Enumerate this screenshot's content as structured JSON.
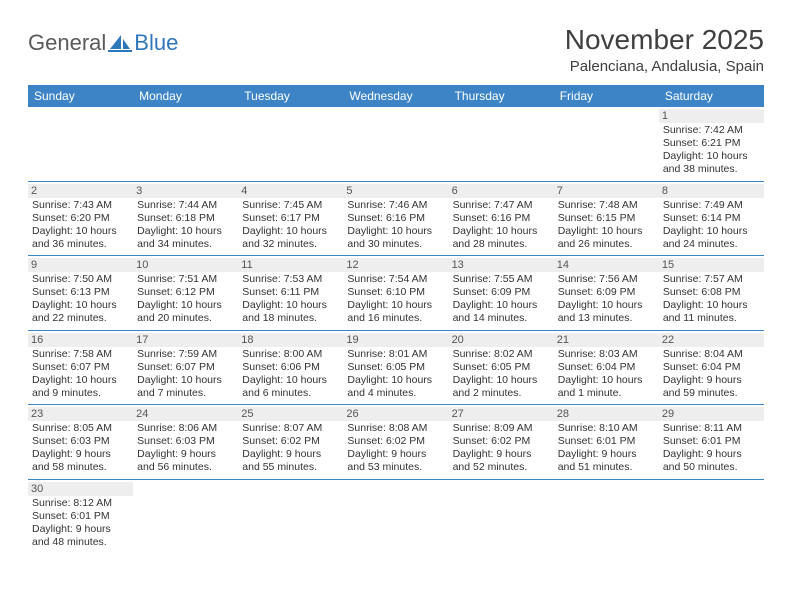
{
  "logo": {
    "text1": "General",
    "text2": "Blue",
    "color1": "#5a5a5a",
    "color2": "#2f77bb"
  },
  "title": "November 2025",
  "location": "Palenciana, Andalusia, Spain",
  "header_bg": "#3d84c6",
  "daynum_bg": "#eeeeee",
  "weekdays": [
    "Sunday",
    "Monday",
    "Tuesday",
    "Wednesday",
    "Thursday",
    "Friday",
    "Saturday"
  ],
  "weeks": [
    [
      null,
      null,
      null,
      null,
      null,
      null,
      {
        "n": "1",
        "sr": "Sunrise: 7:42 AM",
        "ss": "Sunset: 6:21 PM",
        "d1": "Daylight: 10 hours",
        "d2": "and 38 minutes."
      }
    ],
    [
      {
        "n": "2",
        "sr": "Sunrise: 7:43 AM",
        "ss": "Sunset: 6:20 PM",
        "d1": "Daylight: 10 hours",
        "d2": "and 36 minutes."
      },
      {
        "n": "3",
        "sr": "Sunrise: 7:44 AM",
        "ss": "Sunset: 6:18 PM",
        "d1": "Daylight: 10 hours",
        "d2": "and 34 minutes."
      },
      {
        "n": "4",
        "sr": "Sunrise: 7:45 AM",
        "ss": "Sunset: 6:17 PM",
        "d1": "Daylight: 10 hours",
        "d2": "and 32 minutes."
      },
      {
        "n": "5",
        "sr": "Sunrise: 7:46 AM",
        "ss": "Sunset: 6:16 PM",
        "d1": "Daylight: 10 hours",
        "d2": "and 30 minutes."
      },
      {
        "n": "6",
        "sr": "Sunrise: 7:47 AM",
        "ss": "Sunset: 6:16 PM",
        "d1": "Daylight: 10 hours",
        "d2": "and 28 minutes."
      },
      {
        "n": "7",
        "sr": "Sunrise: 7:48 AM",
        "ss": "Sunset: 6:15 PM",
        "d1": "Daylight: 10 hours",
        "d2": "and 26 minutes."
      },
      {
        "n": "8",
        "sr": "Sunrise: 7:49 AM",
        "ss": "Sunset: 6:14 PM",
        "d1": "Daylight: 10 hours",
        "d2": "and 24 minutes."
      }
    ],
    [
      {
        "n": "9",
        "sr": "Sunrise: 7:50 AM",
        "ss": "Sunset: 6:13 PM",
        "d1": "Daylight: 10 hours",
        "d2": "and 22 minutes."
      },
      {
        "n": "10",
        "sr": "Sunrise: 7:51 AM",
        "ss": "Sunset: 6:12 PM",
        "d1": "Daylight: 10 hours",
        "d2": "and 20 minutes."
      },
      {
        "n": "11",
        "sr": "Sunrise: 7:53 AM",
        "ss": "Sunset: 6:11 PM",
        "d1": "Daylight: 10 hours",
        "d2": "and 18 minutes."
      },
      {
        "n": "12",
        "sr": "Sunrise: 7:54 AM",
        "ss": "Sunset: 6:10 PM",
        "d1": "Daylight: 10 hours",
        "d2": "and 16 minutes."
      },
      {
        "n": "13",
        "sr": "Sunrise: 7:55 AM",
        "ss": "Sunset: 6:09 PM",
        "d1": "Daylight: 10 hours",
        "d2": "and 14 minutes."
      },
      {
        "n": "14",
        "sr": "Sunrise: 7:56 AM",
        "ss": "Sunset: 6:09 PM",
        "d1": "Daylight: 10 hours",
        "d2": "and 13 minutes."
      },
      {
        "n": "15",
        "sr": "Sunrise: 7:57 AM",
        "ss": "Sunset: 6:08 PM",
        "d1": "Daylight: 10 hours",
        "d2": "and 11 minutes."
      }
    ],
    [
      {
        "n": "16",
        "sr": "Sunrise: 7:58 AM",
        "ss": "Sunset: 6:07 PM",
        "d1": "Daylight: 10 hours",
        "d2": "and 9 minutes."
      },
      {
        "n": "17",
        "sr": "Sunrise: 7:59 AM",
        "ss": "Sunset: 6:07 PM",
        "d1": "Daylight: 10 hours",
        "d2": "and 7 minutes."
      },
      {
        "n": "18",
        "sr": "Sunrise: 8:00 AM",
        "ss": "Sunset: 6:06 PM",
        "d1": "Daylight: 10 hours",
        "d2": "and 6 minutes."
      },
      {
        "n": "19",
        "sr": "Sunrise: 8:01 AM",
        "ss": "Sunset: 6:05 PM",
        "d1": "Daylight: 10 hours",
        "d2": "and 4 minutes."
      },
      {
        "n": "20",
        "sr": "Sunrise: 8:02 AM",
        "ss": "Sunset: 6:05 PM",
        "d1": "Daylight: 10 hours",
        "d2": "and 2 minutes."
      },
      {
        "n": "21",
        "sr": "Sunrise: 8:03 AM",
        "ss": "Sunset: 6:04 PM",
        "d1": "Daylight: 10 hours",
        "d2": "and 1 minute."
      },
      {
        "n": "22",
        "sr": "Sunrise: 8:04 AM",
        "ss": "Sunset: 6:04 PM",
        "d1": "Daylight: 9 hours",
        "d2": "and 59 minutes."
      }
    ],
    [
      {
        "n": "23",
        "sr": "Sunrise: 8:05 AM",
        "ss": "Sunset: 6:03 PM",
        "d1": "Daylight: 9 hours",
        "d2": "and 58 minutes."
      },
      {
        "n": "24",
        "sr": "Sunrise: 8:06 AM",
        "ss": "Sunset: 6:03 PM",
        "d1": "Daylight: 9 hours",
        "d2": "and 56 minutes."
      },
      {
        "n": "25",
        "sr": "Sunrise: 8:07 AM",
        "ss": "Sunset: 6:02 PM",
        "d1": "Daylight: 9 hours",
        "d2": "and 55 minutes."
      },
      {
        "n": "26",
        "sr": "Sunrise: 8:08 AM",
        "ss": "Sunset: 6:02 PM",
        "d1": "Daylight: 9 hours",
        "d2": "and 53 minutes."
      },
      {
        "n": "27",
        "sr": "Sunrise: 8:09 AM",
        "ss": "Sunset: 6:02 PM",
        "d1": "Daylight: 9 hours",
        "d2": "and 52 minutes."
      },
      {
        "n": "28",
        "sr": "Sunrise: 8:10 AM",
        "ss": "Sunset: 6:01 PM",
        "d1": "Daylight: 9 hours",
        "d2": "and 51 minutes."
      },
      {
        "n": "29",
        "sr": "Sunrise: 8:11 AM",
        "ss": "Sunset: 6:01 PM",
        "d1": "Daylight: 9 hours",
        "d2": "and 50 minutes."
      }
    ],
    [
      {
        "n": "30",
        "sr": "Sunrise: 8:12 AM",
        "ss": "Sunset: 6:01 PM",
        "d1": "Daylight: 9 hours",
        "d2": "and 48 minutes."
      },
      null,
      null,
      null,
      null,
      null,
      null
    ]
  ]
}
